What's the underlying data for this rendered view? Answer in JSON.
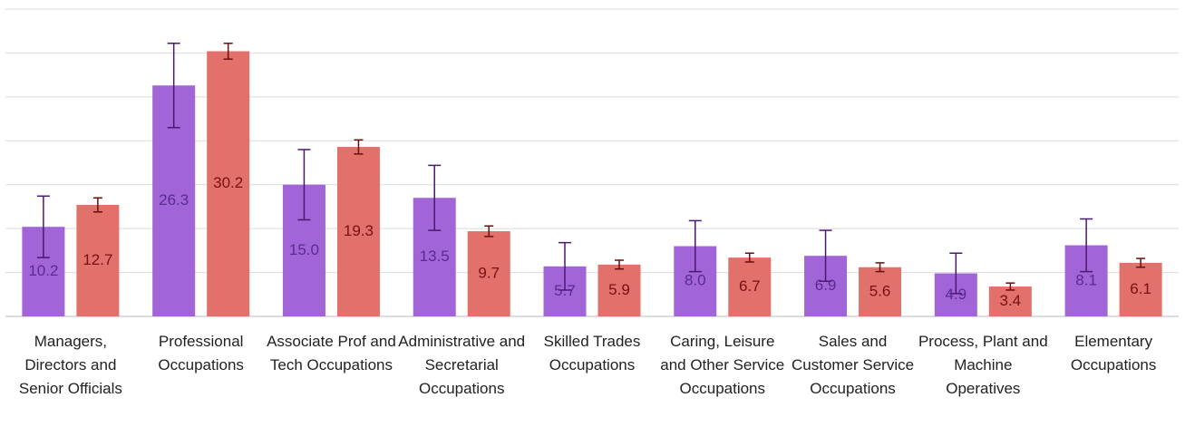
{
  "chart_data": {
    "type": "bar",
    "categories": [
      "Managers, Directors and Senior Officials",
      "Professional Occupations",
      "Associate Prof and Tech Occupations",
      "Administrative and Secretarial Occupations",
      "Skilled Trades Occupations",
      "Caring, Leisure and Other Service Occupations",
      "Sales and Customer Service Occupations",
      "Process, Plant and Machine Operatives",
      "Elementary Occupations"
    ],
    "series": [
      {
        "color": "#a265d8",
        "values": [
          10.2,
          26.3,
          15.0,
          13.5,
          5.7,
          8.0,
          6.9,
          4.9,
          8.1
        ],
        "value_labels": [
          "10.2",
          "26.3",
          "15.0",
          "13.5",
          "5.7",
          "8.0",
          "6.9",
          "4.9",
          "8.1"
        ],
        "errors": [
          3.5,
          4.8,
          4.0,
          3.7,
          2.7,
          2.9,
          2.9,
          2.3,
          3.0
        ]
      },
      {
        "color": "#e2716b",
        "values": [
          12.7,
          30.2,
          19.3,
          9.7,
          5.9,
          6.7,
          5.6,
          3.4,
          6.1
        ],
        "errors": [
          0.8,
          0.9,
          0.8,
          0.6,
          0.5,
          0.5,
          0.5,
          0.4,
          0.5
        ]
      }
    ],
    "ylim": [
      0,
      35
    ],
    "yticks": [
      0,
      5,
      10,
      15,
      20,
      25,
      30,
      35
    ],
    "grid": true
  }
}
